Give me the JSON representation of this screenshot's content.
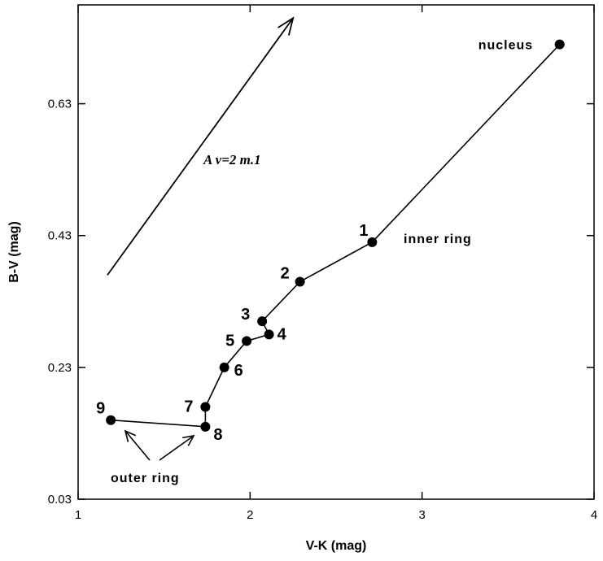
{
  "chart_data": {
    "type": "scatter",
    "title": "",
    "xlabel": "V-K  (mag)",
    "ylabel": "B-V  (mag)",
    "xlim": [
      1,
      4
    ],
    "ylim": [
      0.03,
      0.78
    ],
    "xticks": [
      1,
      2,
      3,
      4
    ],
    "xtick_labels": [
      "1",
      "2",
      "3",
      "4"
    ],
    "yticks": [
      0.03,
      0.23,
      0.43,
      0.63
    ],
    "ytick_labels": [
      "0.03",
      "0.23",
      "0.43",
      "0.63"
    ],
    "grid": false,
    "points": [
      {
        "label": "nucleus",
        "x": 3.8,
        "y": 0.72
      },
      {
        "label": "1",
        "x": 2.71,
        "y": 0.42
      },
      {
        "label": "2",
        "x": 2.29,
        "y": 0.36
      },
      {
        "label": "3",
        "x": 2.07,
        "y": 0.3
      },
      {
        "label": "4",
        "x": 2.11,
        "y": 0.28
      },
      {
        "label": "5",
        "x": 1.98,
        "y": 0.27
      },
      {
        "label": "6",
        "x": 1.85,
        "y": 0.23
      },
      {
        "label": "7",
        "x": 1.74,
        "y": 0.17
      },
      {
        "label": "8",
        "x": 1.74,
        "y": 0.14
      },
      {
        "label": "9",
        "x": 1.19,
        "y": 0.15
      }
    ],
    "annotations": {
      "inner_ring": "inner ring",
      "outer_ring": "outer ring",
      "reddening_vector": "A v=2 m.1"
    },
    "reddening_vector": {
      "from": [
        1.17,
        0.37
      ],
      "to": [
        2.25,
        0.76
      ]
    }
  }
}
